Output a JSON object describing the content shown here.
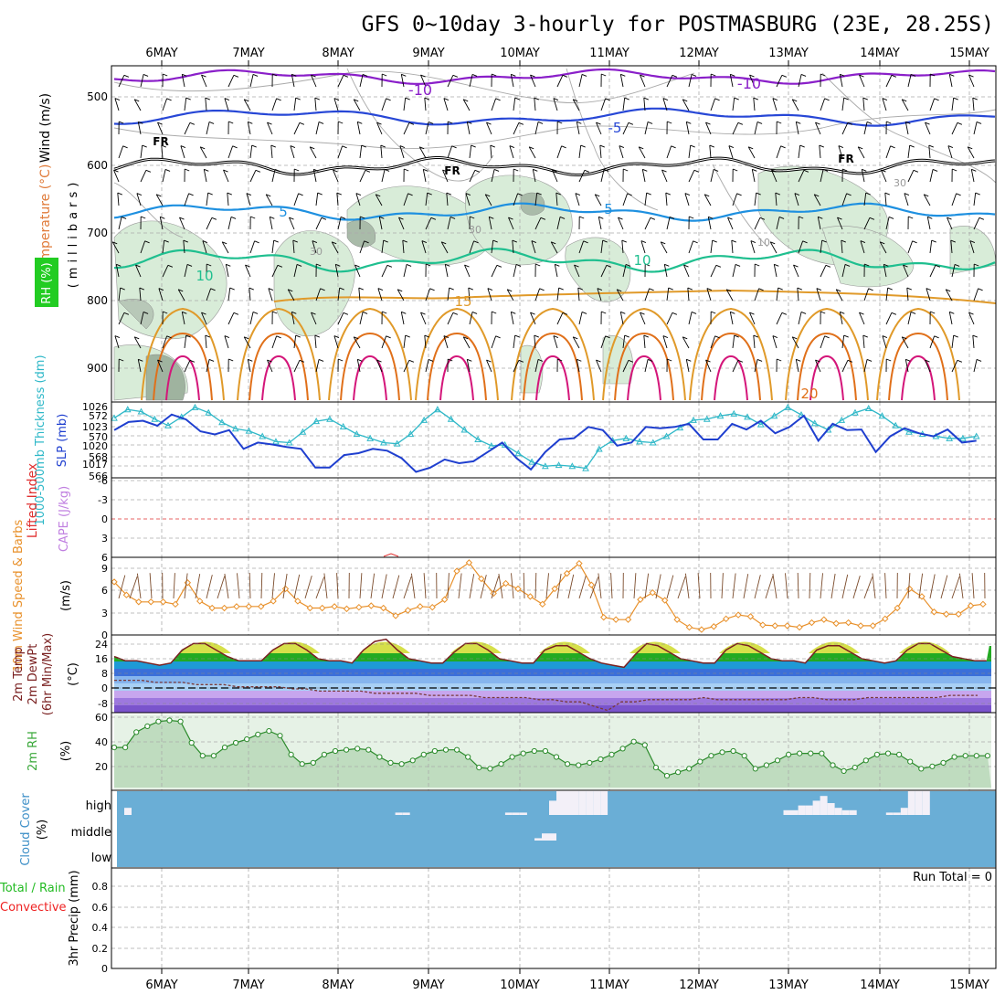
{
  "title": "GFS 0~10day 3-hourly for POSTMASBURG (23E, 28.25S)",
  "x_axis": {
    "labels": [
      "6MAY",
      "7MAY",
      "8MAY",
      "9MAY",
      "10MAY",
      "11MAY",
      "12MAY",
      "13MAY",
      "14MAY",
      "15MAY"
    ]
  },
  "colors": {
    "temp_neg10": "#8a1fc9",
    "temp_neg5": "#2747d6",
    "freezing": "#000000",
    "temp_5": "#1e90e0",
    "temp_10": "#1fbf8f",
    "temp_15": "#e09a2a",
    "temp_20": "#e0701a",
    "temp_25": "#d4167a",
    "rh_fill": "#d8ecd8",
    "thickness": "#2fb8c8",
    "slp": "#1f3fcf",
    "lifted": "#e03030",
    "cape": "#c080e0",
    "wind10": "#e8902a",
    "rh2m": "#3aa83a",
    "cloud": "#6aaed6",
    "precip_total": "#22bb22",
    "precip_conv": "#ee2222"
  },
  "panels": {
    "upper": {
      "ylabel_wind": "Wind (m/s)",
      "ylabel_temp": "Temperature (°C)",
      "ylabel_rh": "RH (%)",
      "ylabel_units": "(millibars)",
      "yticks": [
        "500",
        "600",
        "700",
        "800",
        "900"
      ],
      "contour_labels": [
        "-10",
        "-10",
        "-5",
        "FR",
        "FR",
        "FR",
        "5",
        "5",
        "10",
        "10",
        "15",
        "20",
        "30",
        "30",
        "10",
        "30"
      ]
    },
    "thickness": {
      "ylabel": "1000-500mb Thickness (dm)",
      "ylabel2": "SLP (mb)",
      "left_ticks": [
        "572",
        "570",
        "568",
        "566"
      ],
      "right_ticks": [
        "1026",
        "1023",
        "1020",
        "1017"
      ]
    },
    "stability": {
      "ylabel_li": "Lifted Index",
      "ylabel_cape": "CAPE (J/kg)",
      "ticks": [
        "-6",
        "-3",
        "0",
        "3",
        "6"
      ]
    },
    "wind10": {
      "ylabel": "10m Wind Speed & Barbs",
      "units": "(m/s)",
      "ticks": [
        "9",
        "6",
        "3",
        "0"
      ]
    },
    "temp2m": {
      "ylabel": "2m Temp 2m DewPt (6hr Min/Max)",
      "units": "(°C)",
      "ticks": [
        "24",
        "16",
        "8",
        "0",
        "-8"
      ]
    },
    "rh2m": {
      "ylabel": "2m RH",
      "units": "(%)",
      "ticks": [
        "60",
        "40",
        "20"
      ]
    },
    "cloud": {
      "ylabel": "Cloud Cover (%)",
      "levels": [
        "high",
        "middle",
        "low"
      ]
    },
    "precip": {
      "ylabel_total": "Total / Rain",
      "ylabel_conv": "Convective",
      "ylabel": "3hr Precip (mm)",
      "ticks": [
        "0.8",
        "0.6",
        "0.4",
        "0.2",
        "0"
      ],
      "run_total": "Run Total = 0"
    }
  },
  "chart_data": [
    {
      "type": "line",
      "name": "1000-500mb Thickness",
      "x_start": "6MAY 00Z-ish",
      "step_hours": 3,
      "values": [
        571.5,
        572.3,
        572.1,
        571.4,
        570.8,
        571.6,
        572.5,
        572.0,
        571.1,
        570.5,
        570.3,
        569.8,
        569.3,
        569.2,
        570.2,
        571.2,
        571.4,
        570.7,
        570.0,
        569.6,
        569.2,
        569.1,
        570.0,
        571.3,
        572.3,
        571.4,
        570.4,
        569.5,
        568.9,
        569.0,
        568.2,
        567.4,
        567.0,
        567.1,
        567.0,
        566.8,
        568.6,
        569.4,
        569.6,
        569.3,
        569.2,
        569.8,
        570.6,
        571.3,
        571.4,
        571.7,
        571.9,
        571.6,
        570.9,
        571.7,
        572.5,
        571.8,
        571.0,
        570.4,
        571.3,
        572.0,
        572.4,
        571.7,
        570.8,
        570.2,
        570.0,
        569.8,
        569.6,
        569.6,
        569.8
      ],
      "ylim": [
        566,
        573
      ]
    },
    {
      "type": "line",
      "name": "SLP",
      "step_hours": 3,
      "values": [
        1022.5,
        1023.8,
        1024.0,
        1023.2,
        1025.0,
        1024.2,
        1022.3,
        1021.8,
        1022.5,
        1019.5,
        1020.5,
        1020.2,
        1019.8,
        1019.5,
        1016.5,
        1016.5,
        1018.5,
        1018.8,
        1019.5,
        1019.2,
        1018.0,
        1015.8,
        1016.5,
        1017.8,
        1017.2,
        1017.5,
        1019.0,
        1020.5,
        1018.0,
        1016.2,
        1019.0,
        1021.0,
        1021.2,
        1023.0,
        1022.5,
        1020.0,
        1020.5,
        1023.0,
        1022.8,
        1023.0,
        1023.5,
        1021.0,
        1021.0,
        1023.5,
        1022.6,
        1024.0,
        1022.0,
        1023.0,
        1024.8,
        1020.8,
        1023.5,
        1022.5,
        1022.6,
        1019.0,
        1021.5,
        1022.8,
        1022.0,
        1021.5,
        1022.6,
        1020.5,
        1020.8
      ],
      "ylim": [
        1015,
        1027
      ]
    },
    {
      "type": "line",
      "name": "10m Wind Speed",
      "step_hours": 3,
      "values": [
        6.9,
        5.2,
        4.3,
        4.3,
        4.3,
        4.0,
        6.8,
        4.4,
        3.5,
        3.5,
        3.7,
        3.7,
        3.7,
        4.4,
        6.0,
        4.4,
        3.5,
        3.5,
        3.7,
        3.4,
        3.6,
        3.8,
        3.5,
        2.5,
        3.2,
        3.7,
        3.6,
        4.6,
        8.3,
        9.4,
        7.3,
        5.4,
        6.7,
        6.0,
        5.0,
        4.0,
        6.0,
        8.0,
        9.3,
        6.5,
        2.3,
        2.0,
        2.0,
        4.6,
        5.5,
        4.5,
        2.0,
        1.0,
        0.7,
        1.1,
        2.1,
        2.6,
        2.4,
        1.3,
        1.2,
        1.2,
        1.0,
        1.6,
        2.0,
        1.5,
        1.6,
        1.2,
        1.2,
        2.1,
        3.5,
        6.0,
        5.0,
        3.0,
        2.7,
        2.7,
        3.8,
        4.0
      ],
      "ylim": [
        0,
        9.5
      ]
    },
    {
      "type": "area",
      "name": "2m Temp",
      "step_hours": 3,
      "values": [
        16,
        14,
        14,
        13,
        12,
        13,
        19,
        22,
        22,
        19,
        16,
        14,
        14,
        14,
        19,
        22,
        22,
        19,
        15,
        14,
        14,
        13,
        19,
        23,
        24,
        19,
        15,
        14,
        13,
        13,
        18,
        22,
        22,
        19,
        15,
        14,
        13,
        13,
        19,
        21,
        21,
        18,
        15,
        13,
        12,
        11,
        17,
        22,
        21,
        18,
        15,
        14,
        13,
        13,
        19,
        22,
        21,
        18,
        15,
        14,
        14,
        13,
        19,
        21,
        21,
        18,
        15,
        14,
        13,
        14,
        19,
        22,
        22,
        19,
        16,
        15,
        14,
        14
      ],
      "ylim": [
        -10,
        26
      ]
    },
    {
      "type": "line",
      "name": "2m DewPt",
      "step_hours": 3,
      "values": [
        5,
        5,
        5,
        4,
        4,
        4,
        3,
        3,
        3,
        2,
        2,
        2,
        2,
        1,
        1,
        0,
        0,
        0,
        0,
        -1,
        -1,
        -1,
        -1,
        -2,
        -2,
        -2,
        -2,
        -3,
        -3,
        -3,
        -3,
        -4,
        -4,
        -5,
        -5,
        -7,
        -9,
        -5,
        -5,
        -4,
        -4,
        -4,
        -4,
        -3,
        -4,
        -4,
        -4,
        -4,
        -4,
        -4,
        -3,
        -3,
        -4,
        -4,
        -4,
        -3,
        -3,
        -3,
        -3,
        -3,
        -3,
        -2,
        -2,
        -2
      ],
      "ylim": [
        -10,
        26
      ]
    },
    {
      "type": "area",
      "name": "2m RH",
      "step_hours": 3,
      "values": [
        34,
        34,
        47,
        52,
        56,
        57,
        56,
        38,
        27,
        27,
        34,
        38,
        41,
        45,
        48,
        44,
        28,
        20,
        21,
        28,
        31,
        32,
        33,
        32,
        26,
        21,
        20,
        23,
        28,
        31,
        32,
        32,
        26,
        17,
        16,
        20,
        26,
        29,
        31,
        31,
        26,
        20,
        19,
        21,
        24,
        28,
        33,
        39,
        36,
        17,
        10,
        13,
        16,
        22,
        27,
        30,
        31,
        27,
        16,
        19,
        23,
        28,
        29,
        29,
        29,
        19,
        14,
        17,
        23,
        28,
        29,
        28,
        22,
        16,
        18,
        21,
        26,
        27,
        27,
        27
      ],
      "ylim": [
        0,
        62
      ]
    },
    {
      "type": "bar",
      "name": "Cloud Cover",
      "series": [
        {
          "name": "high",
          "values": [
            0,
            30,
            0,
            0,
            0,
            0,
            0,
            0,
            0,
            0,
            0,
            0,
            0,
            0,
            0,
            0,
            0,
            0,
            0,
            0,
            0,
            0,
            0,
            0,
            0,
            0,
            0,
            0,
            0,
            0,
            0,
            0,
            0,
            0,
            0,
            0,
            0,
            0,
            10,
            10,
            0,
            0,
            0,
            0,
            0,
            0,
            0,
            0,
            0,
            0,
            0,
            0,
            0,
            10,
            10,
            10,
            0,
            0,
            0,
            60,
            100,
            100,
            100,
            100,
            100,
            100,
            100,
            0,
            0,
            0,
            0,
            0,
            0,
            0,
            0,
            0,
            0,
            0,
            0,
            0,
            0,
            0,
            0,
            0,
            0,
            0,
            0,
            0,
            0,
            0,
            0,
            20,
            20,
            40,
            40,
            60,
            80,
            50,
            30,
            20,
            20,
            0,
            0,
            0,
            0,
            10,
            10,
            30,
            100,
            100,
            100,
            0,
            0,
            0,
            0,
            0,
            0,
            0,
            0,
            0
          ]
        },
        {
          "name": "middle",
          "values": [
            0,
            0,
            0,
            0,
            0,
            0,
            0,
            0,
            0,
            0,
            0,
            0,
            0,
            0,
            0,
            0,
            0,
            0,
            0,
            0,
            0,
            0,
            0,
            0,
            0,
            0,
            0,
            0,
            0,
            0,
            0,
            0,
            0,
            0,
            0,
            0,
            0,
            0,
            0,
            0,
            0,
            0,
            0,
            0,
            0,
            0,
            0,
            0,
            0,
            0,
            0,
            0,
            0,
            0,
            0,
            0,
            0,
            10,
            30,
            30,
            0,
            0,
            0,
            0,
            0,
            0,
            0,
            0,
            0,
            0,
            0,
            0,
            0,
            0,
            0,
            0,
            0,
            0,
            0,
            0,
            0,
            0,
            0,
            0,
            0,
            0,
            0,
            0,
            0,
            0,
            0,
            0,
            0,
            0,
            0,
            0,
            0,
            0,
            0,
            0,
            0,
            0,
            0,
            0,
            0,
            0,
            0,
            0,
            0,
            0,
            0,
            0,
            0,
            0,
            0,
            0,
            0,
            0,
            0,
            0
          ]
        },
        {
          "name": "low",
          "values": []
        }
      ]
    },
    {
      "type": "bar",
      "name": "3hr Precip",
      "values": [],
      "ylim": [
        0,
        0.9
      ]
    }
  ]
}
